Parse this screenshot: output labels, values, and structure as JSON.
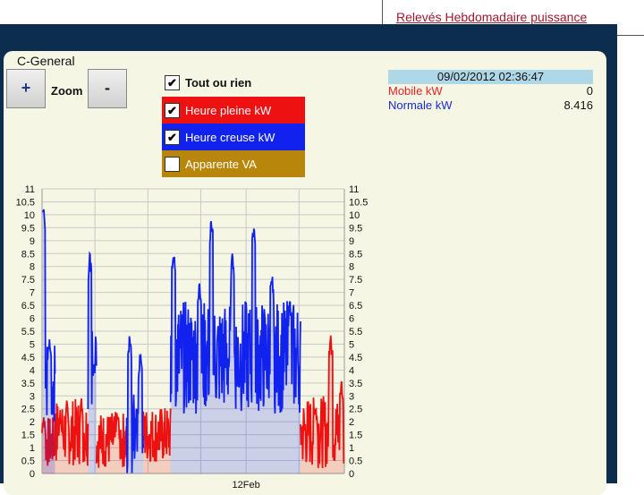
{
  "header": {
    "link_label": "Relevés Hebdomadaire puissance"
  },
  "panel": {
    "title": "C-General"
  },
  "zoom": {
    "plus_label": "+",
    "label": "Zoom",
    "minus_label": "-"
  },
  "toggles": [
    {
      "label": "Tout ou rien",
      "checked": true,
      "color": ""
    },
    {
      "label": "Heure pleine kW",
      "checked": true,
      "color": "#ee1111"
    },
    {
      "label": "Heure creuse kW",
      "checked": true,
      "color": "#1122ee"
    },
    {
      "label": "Apparente VA",
      "checked": false,
      "color": "#b8860b"
    }
  ],
  "info": {
    "datetime": "09/02/2012 02:36:47",
    "rows": [
      {
        "label": "Mobile kW",
        "value": "0",
        "color": "#ee2222"
      },
      {
        "label": "Normale kW",
        "value": "8.416",
        "color": "#1a2ad0"
      }
    ]
  },
  "chart_data": {
    "type": "area",
    "ylim": [
      0,
      11
    ],
    "yticks": [
      0,
      0.5,
      1,
      1.5,
      2,
      2.5,
      3,
      3.5,
      4,
      4.5,
      5,
      5.5,
      6,
      6.5,
      7,
      7.5,
      8,
      8.5,
      9,
      9.5,
      10,
      10.5,
      11
    ],
    "ytick_labels": [
      "0",
      "0.5",
      "1",
      "1.5",
      "2",
      "2.5",
      "3",
      "3.5",
      "4",
      "4.5",
      "5",
      "5.5",
      "6",
      "6.5",
      "7",
      "7.5",
      "8",
      "8.5",
      "9",
      "9.5",
      "10",
      "10.5",
      "11"
    ],
    "xlim": [
      0,
      1
    ],
    "x_tick_label": "12Feb",
    "x_tick_pos": 0.675,
    "x_grid": [
      0.175,
      0.35,
      0.525,
      0.675,
      0.85
    ],
    "grid": true,
    "series": [
      {
        "name": "Heure pleine kW",
        "color": "#ee1111",
        "segments": [
          {
            "x0": 0.0,
            "x1": 0.04,
            "base": 1.2,
            "noise": 1.0,
            "bumps": [
              [
                0.005,
                2.5
              ]
            ]
          },
          {
            "x0": 0.04,
            "x1": 0.152,
            "base": 1.6,
            "noise": 1.3,
            "bumps": [
              [
                0.06,
                2.5
              ],
              [
                0.13,
                3.0
              ]
            ]
          },
          {
            "x0": 0.18,
            "x1": 0.28,
            "base": 1.3,
            "noise": 1.1,
            "bumps": [
              [
                0.25,
                2.6
              ]
            ]
          },
          {
            "x0": 0.335,
            "x1": 0.425,
            "base": 1.5,
            "noise": 1.1,
            "bumps": []
          },
          {
            "x0": 0.855,
            "x1": 0.998,
            "base": 1.6,
            "noise": 1.4,
            "bumps": [
              [
                0.905,
                2.8
              ],
              [
                0.955,
                5.5
              ],
              [
                0.99,
                3.8
              ]
            ]
          }
        ]
      },
      {
        "name": "Heure creuse kW",
        "color": "#1122ee",
        "segments": [
          {
            "x0": 0.003,
            "x1": 0.043,
            "base": 3.5,
            "noise": 1.5,
            "peaks": [
              [
                0.005,
                10.5
              ],
              [
                0.025,
                5.5
              ]
            ]
          },
          {
            "x0": 0.152,
            "x1": 0.18,
            "base": 3.5,
            "noise": 2.0,
            "peaks": [
              [
                0.158,
                8.6
              ],
              [
                0.172,
                4.5
              ]
            ]
          },
          {
            "x0": 0.28,
            "x1": 0.335,
            "base": 1.5,
            "noise": 1.6,
            "peaks": [
              [
                0.29,
                5.6
              ],
              [
                0.325,
                4.8
              ]
            ]
          },
          {
            "x0": 0.425,
            "x1": 0.855,
            "base": 4.5,
            "noise": 2.2,
            "peaks": [
              [
                0.435,
                8.8
              ],
              [
                0.52,
                7.5
              ],
              [
                0.56,
                10.0
              ],
              [
                0.63,
                8.6
              ],
              [
                0.7,
                9.8
              ],
              [
                0.76,
                8.0
              ],
              [
                0.82,
                6.8
              ]
            ]
          }
        ]
      }
    ]
  }
}
